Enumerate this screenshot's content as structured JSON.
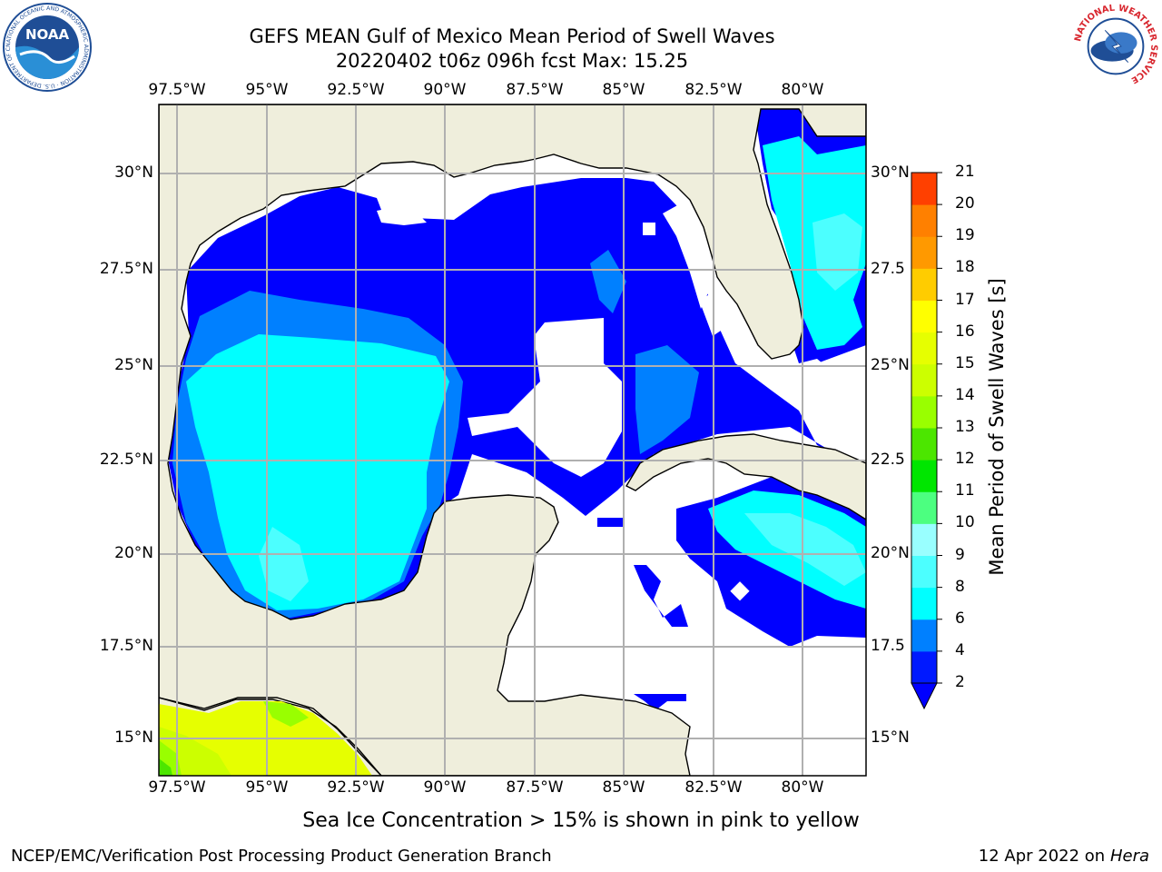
{
  "header": {
    "title_line1": "GEFS MEAN Gulf of Mexico Mean Period of Swell Waves",
    "title_line2": "20220402 t06z 096h fcst   Max: 15.25"
  },
  "logos": {
    "noaa_text": "NOAA",
    "noaa_ring_text": "NATIONAL OCEANIC AND ATMOSPHERIC ADMINISTRATION · U.S. DEPARTMENT OF COMMERCE",
    "nws_ring_text": "NATIONAL WEATHER SERVICE"
  },
  "map": {
    "lon_ticks": [
      "97.5°W",
      "95°W",
      "92.5°W",
      "90°W",
      "87.5°W",
      "85°W",
      "82.5°W",
      "80°W"
    ],
    "lat_ticks_left": [
      "30°N",
      "27.5°N",
      "25°N",
      "22.5°N",
      "20°N",
      "17.5°N",
      "15°N"
    ],
    "lat_ticks_right": [
      "30°N",
      "27.5",
      "25°N",
      "22.5",
      "20°N",
      "17.5",
      "15°N"
    ],
    "colors": {
      "land": "#efeedc",
      "grid": "#b0b0b0",
      "nodata": "#ffffff"
    }
  },
  "colorbar": {
    "label": "Mean Period of Swell Waves [s]",
    "levels": [
      {
        "value": "2",
        "color": "#0019ff"
      },
      {
        "value": "4",
        "color": "#0080ff"
      },
      {
        "value": "6",
        "color": "#00ffff"
      },
      {
        "value": "8",
        "color": "#4cffff"
      },
      {
        "value": "9",
        "color": "#99ffff"
      },
      {
        "value": "10",
        "color": "#4cff80"
      },
      {
        "value": "11",
        "color": "#00e600"
      },
      {
        "value": "12",
        "color": "#4ce600"
      },
      {
        "value": "13",
        "color": "#99ff00"
      },
      {
        "value": "14",
        "color": "#ccff00"
      },
      {
        "value": "15",
        "color": "#e6ff00"
      },
      {
        "value": "16",
        "color": "#ffff00"
      },
      {
        "value": "17",
        "color": "#ffcc00"
      },
      {
        "value": "18",
        "color": "#ff9900"
      },
      {
        "value": "19",
        "color": "#ff8000"
      },
      {
        "value": "20",
        "color": "#ff4000"
      },
      {
        "value": "21",
        "color": "#ff0000"
      }
    ],
    "extend_min_color": "#0000ff"
  },
  "caption": "Sea Ice Concentration > 15% is shown in pink to yellow",
  "footer": {
    "left": "NCEP/EMC/Verification Post Processing Product Generation Branch",
    "right_date": "12 Apr 2022 on ",
    "right_host": "Hera"
  }
}
